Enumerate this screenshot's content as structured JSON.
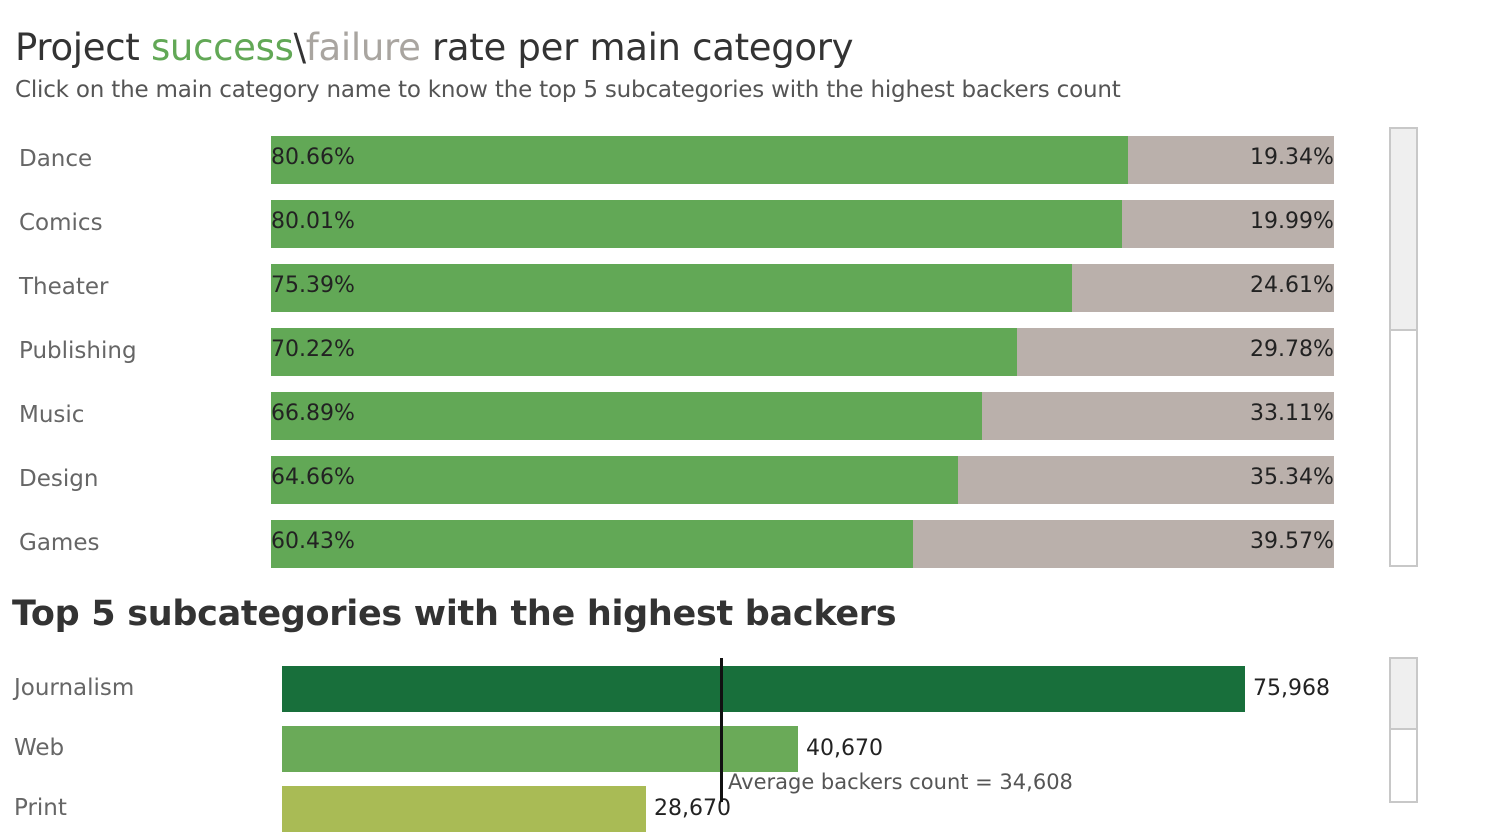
{
  "title": {
    "part1": "Project ",
    "success_word": "success",
    "separator": "\\",
    "failure_word": "failure",
    "part2": " rate per main category"
  },
  "subtitle": "Click on the main category name to know the top 5 subcategories with the highest backers count",
  "colors": {
    "success": "#62a856",
    "failure": "#bab0ab",
    "sub_bars": [
      "#186f3b",
      "#6aaa58",
      "#a9bb55"
    ],
    "title_failure": "#a9a5a0"
  },
  "chart_data": [
    {
      "type": "bar",
      "stacked": true,
      "orientation": "horizontal",
      "categories": [
        "Dance",
        "Comics",
        "Theater",
        "Publishing",
        "Music",
        "Design",
        "Games"
      ],
      "series": [
        {
          "name": "success",
          "values": [
            80.66,
            80.01,
            75.39,
            70.22,
            66.89,
            64.66,
            60.43
          ]
        },
        {
          "name": "failure",
          "values": [
            19.34,
            19.99,
            24.61,
            29.78,
            33.11,
            35.34,
            39.57
          ]
        }
      ],
      "success_labels": [
        "80.66%",
        "80.01%",
        "75.39%",
        "70.22%",
        "66.89%",
        "64.66%",
        "60.43%"
      ],
      "failure_labels": [
        "19.34%",
        "19.99%",
        "24.61%",
        "29.78%",
        "33.11%",
        "35.34%",
        "39.57%"
      ],
      "xlim": [
        0,
        100
      ]
    },
    {
      "type": "bar",
      "orientation": "horizontal",
      "title": "Top 5 subcategories with the highest backers",
      "categories": [
        "Journalism",
        "Web",
        "Print"
      ],
      "values": [
        75968,
        40670,
        28670
      ],
      "value_labels": [
        "75,968",
        "40,670",
        "28,670"
      ],
      "average": 34608,
      "average_label": "Average backers count = 34,608",
      "xlim": [
        0,
        82800
      ]
    }
  ]
}
